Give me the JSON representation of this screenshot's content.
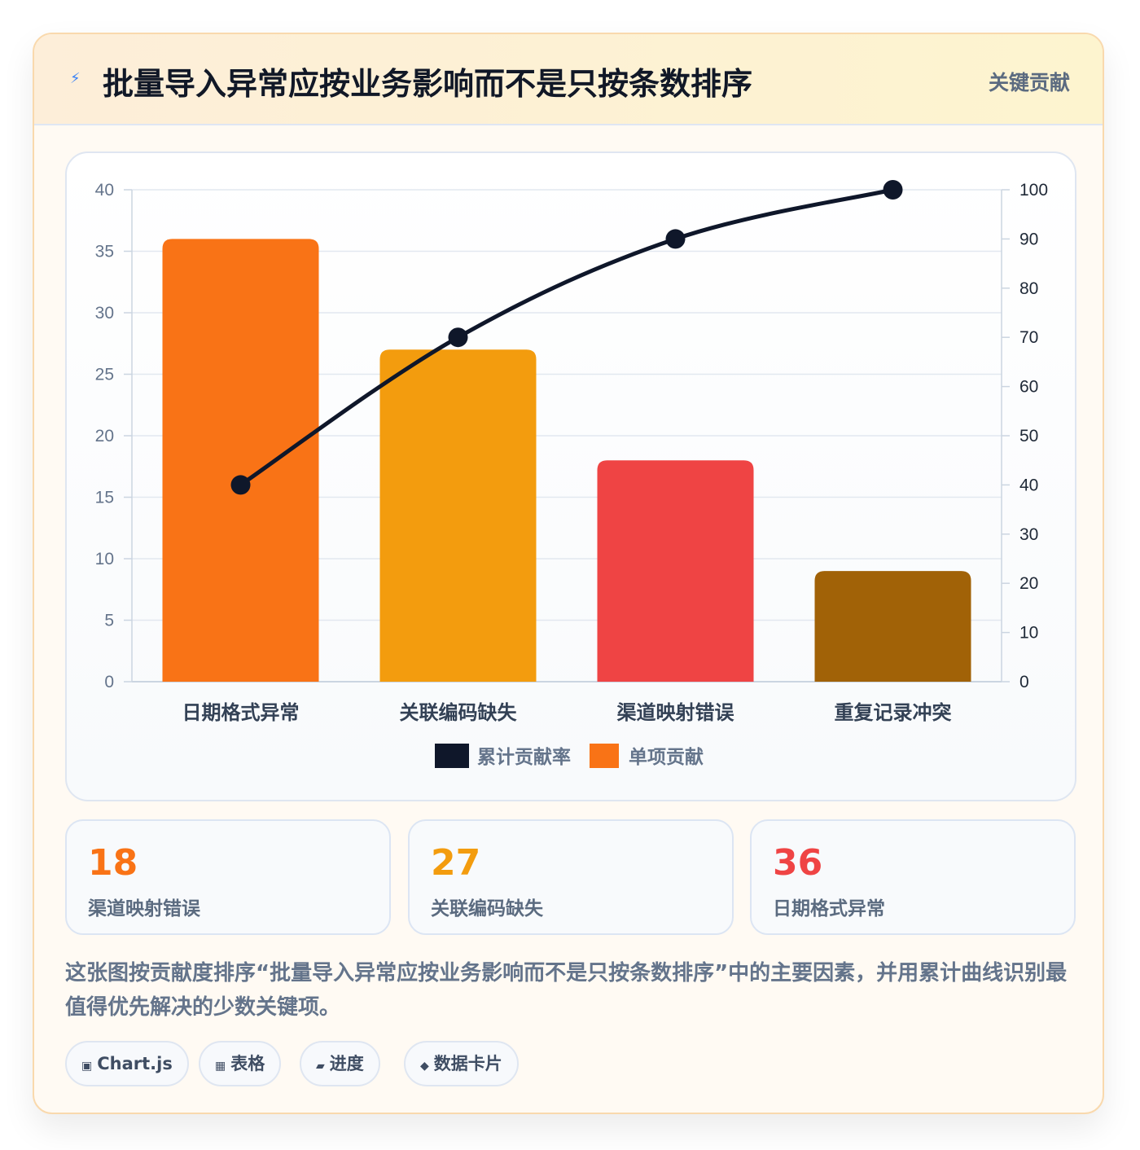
{
  "header": {
    "icon": "lightning-icon",
    "title": "批量导入异常应按业务影响而不是只按条数排序",
    "badge": "关键贡献"
  },
  "chart_data": {
    "type": "bar",
    "categories": [
      "日期格式异常",
      "关联编码缺失",
      "渠道映射错误",
      "重复记录冲突"
    ],
    "series": [
      {
        "name": "单项贡献",
        "type": "bar",
        "axis": "left",
        "values": [
          36,
          27,
          18,
          9
        ],
        "colors": [
          "#f97316",
          "#f39c0e",
          "#ef4444",
          "#a16207"
        ]
      },
      {
        "name": "累计贡献率",
        "type": "line",
        "axis": "right",
        "values": [
          40,
          70,
          90,
          100
        ],
        "color": "#0f172a"
      }
    ],
    "y_left": {
      "min": 0,
      "max": 40,
      "ticks": [
        0,
        5,
        10,
        15,
        20,
        25,
        30,
        35,
        40
      ]
    },
    "y_right": {
      "min": 0,
      "max": 100,
      "ticks": [
        0,
        10,
        20,
        30,
        40,
        50,
        60,
        70,
        80,
        90,
        100
      ]
    },
    "grid": true,
    "legend": {
      "position": "bottom",
      "entries": [
        {
          "label": "累计贡献率",
          "color": "#0f172a"
        },
        {
          "label": "单项贡献",
          "color": "#f97316"
        }
      ]
    }
  },
  "stats": [
    {
      "value": "18",
      "label": "渠道映射错误",
      "color": "#f97316"
    },
    {
      "value": "27",
      "label": "关联编码缺失",
      "color": "#f39c0e"
    },
    {
      "value": "36",
      "label": "日期格式异常",
      "color": "#ef4444"
    }
  ],
  "description": "这张图按贡献度排序“批量导入异常应按业务影响而不是只按条数排序”中的主要因素，并用累计曲线识别最值得优先解决的少数关键项。",
  "chips": [
    {
      "icon": "▣",
      "label": "Chart.js"
    },
    {
      "icon": "▦",
      "label": "表格"
    },
    {
      "icon": "▰",
      "label": "进度"
    },
    {
      "icon": "◆",
      "label": "数据卡片"
    }
  ]
}
